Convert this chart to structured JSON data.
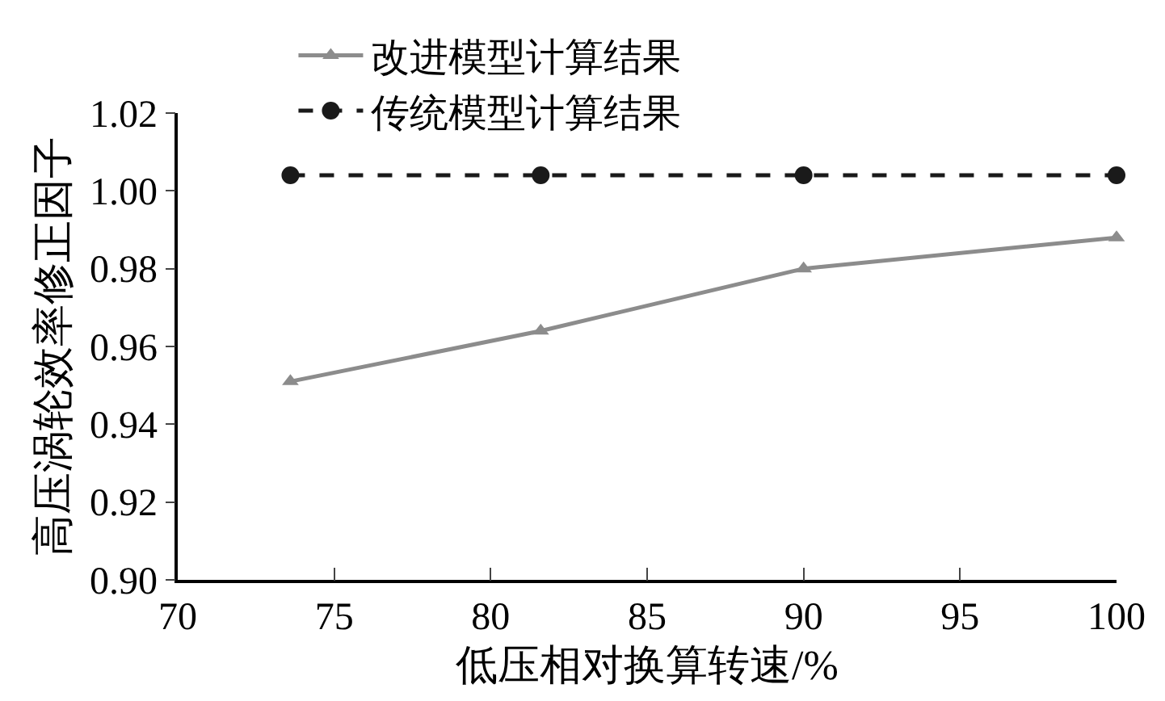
{
  "chart_data": {
    "type": "line",
    "x": [
      73.6,
      81.6,
      90,
      100
    ],
    "series": [
      {
        "name": "改进模型计算结果",
        "color": "#8c8c8c",
        "values": [
          0.951,
          0.964,
          0.98,
          0.988
        ],
        "marker": "triangle",
        "line_style": "solid"
      },
      {
        "name": "传统模型计算结果",
        "color": "#1a1a1a",
        "values": [
          1.004,
          1.004,
          1.004,
          1.004
        ],
        "marker": "circle",
        "line_style": "dashed"
      }
    ],
    "xlabel": "低压相对换算转速/%",
    "ylabel": "高压涡轮效率修正因子",
    "xlim": [
      70,
      100
    ],
    "xticks": [
      70,
      75,
      80,
      85,
      90,
      95,
      100
    ],
    "ylim": [
      0.9,
      1.02
    ],
    "yticks": [
      {
        "value": 0.9,
        "label": "0.90"
      },
      {
        "value": 0.92,
        "label": "0.92"
      },
      {
        "value": 0.94,
        "label": "0.94"
      },
      {
        "value": 0.96,
        "label": "0.96"
      },
      {
        "value": 0.98,
        "label": "0.98"
      },
      {
        "value": 1.0,
        "label": "1.00"
      },
      {
        "value": 1.02,
        "label": "1.02"
      }
    ],
    "legend": "top"
  }
}
